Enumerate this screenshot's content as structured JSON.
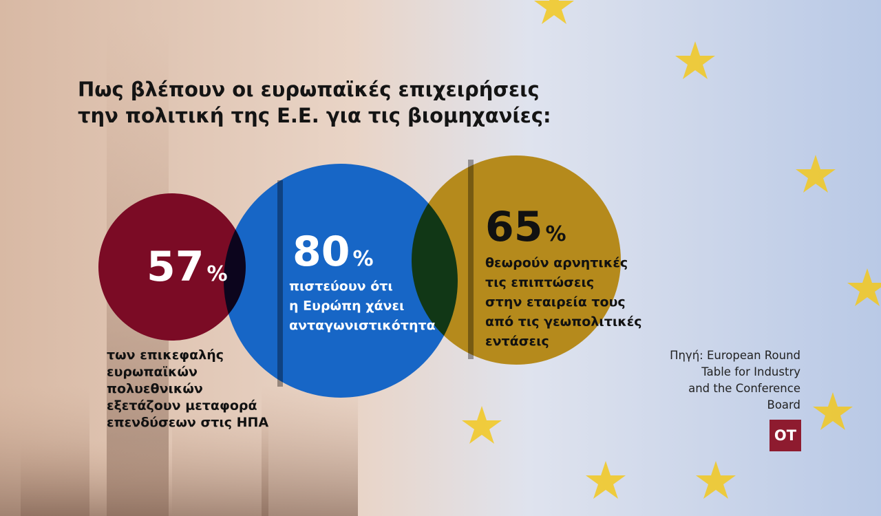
{
  "title": {
    "lines": [
      "Πως βλέπουν οι ευρωπαϊκές επιχειρήσεις",
      "την πολιτική της Ε.Ε. για τις βιομηχανίες:"
    ]
  },
  "stats": [
    {
      "value": 57,
      "unit": "%",
      "lines": [
        "των επικεφαλής",
        "ευρωπαϊκών",
        "πολυεθνικών",
        "εξετάζουν μεταφορά",
        "επενδύσεων στις ΗΠΑ"
      ]
    },
    {
      "value": 80,
      "unit": "%",
      "lines": [
        "πιστεύουν ότι",
        "η Ευρώπη χάνει",
        "ανταγωνιστικότητα"
      ]
    },
    {
      "value": 65,
      "unit": "%",
      "lines": [
        "θεωρούν αρνητικές",
        "τις επιπτώσεις",
        "στην εταιρεία τους",
        "από τις γεωπολιτικές",
        "εντάσεις"
      ]
    }
  ],
  "source": {
    "lines": [
      "Πηγή: European Round",
      "Table for Industry",
      "and the Conference",
      "Board"
    ]
  },
  "logo": "OT"
}
